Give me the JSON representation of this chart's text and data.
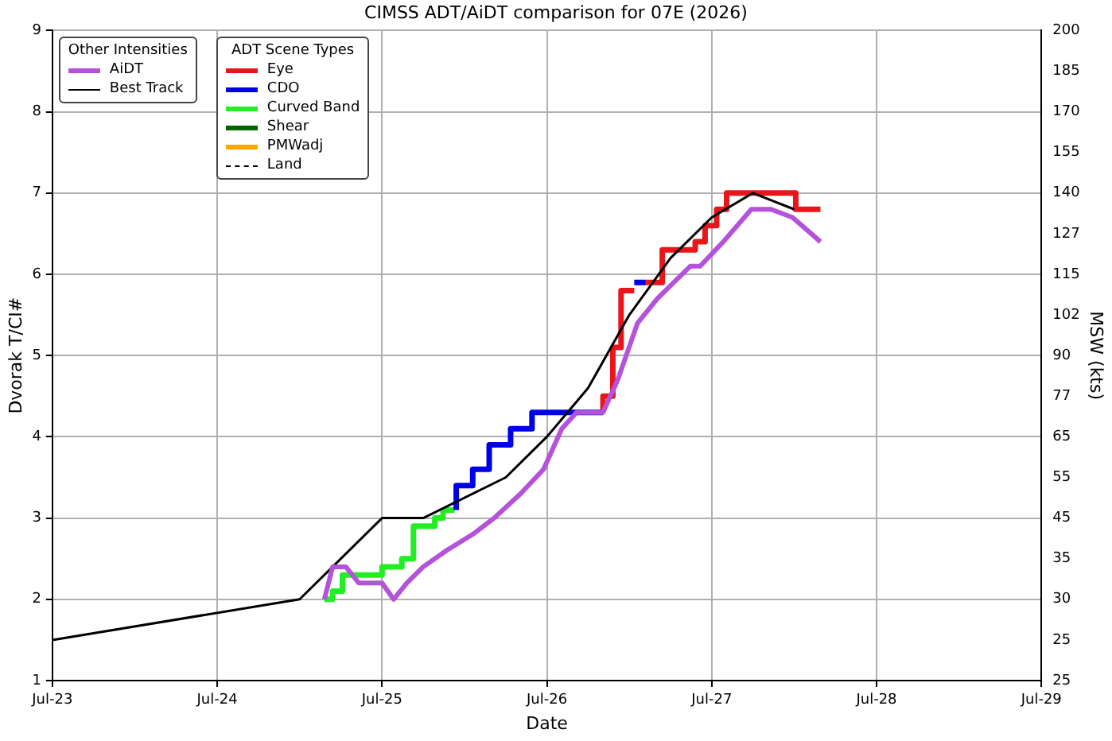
{
  "chart_data": {
    "type": "line",
    "title": "CIMSS ADT/AiDT comparison for 07E (2026)",
    "xlabel": "Date",
    "ylabel": "Dvorak T/CI#",
    "y2label": "MSW (kts)",
    "legend": "top left",
    "legend_title": [
      "Other Intensities",
      "ADT Scene Types"
    ],
    "grid": true,
    "xlim": [
      "2026-07-23",
      "2026-07-29"
    ],
    "xticks": [
      {
        "value": "2026-07-23",
        "label": "Jul-23"
      },
      {
        "value": "2026-07-24",
        "label": "Jul-24"
      },
      {
        "value": "2026-07-25",
        "label": "Jul-25"
      },
      {
        "value": "2026-07-26",
        "label": "Jul-26"
      },
      {
        "value": "2026-07-27",
        "label": "Jul-27"
      },
      {
        "value": "2026-07-28",
        "label": "Jul-28"
      },
      {
        "value": "2026-07-29",
        "label": "Jul-29"
      }
    ],
    "ylim": [
      1,
      9
    ],
    "yticks": [
      1,
      2,
      3,
      4,
      5,
      6,
      7,
      8,
      9
    ],
    "y2_categories": [
      "200",
      "185",
      "170",
      "155",
      "140",
      "127",
      "115",
      "102",
      "90",
      "77",
      "65",
      "55",
      "45",
      "35",
      "30",
      "25",
      "25"
    ],
    "series": [
      {
        "name": "AiDT",
        "color": "#b452dc",
        "x": [
          "2026-07-24T15:36",
          "2026-07-24T16:48",
          "2026-07-24T18:43",
          "2026-07-24T20:38",
          "2026-07-24T22:19",
          "2026-07-25T00:00",
          "2026-07-25T01:41",
          "2026-07-25T03:36",
          "2026-07-25T06:00",
          "2026-07-25T09:22",
          "2026-07-25T13:12",
          "2026-07-25T16:19",
          "2026-07-25T20:10",
          "2026-07-25T23:31",
          "2026-07-26T02:10",
          "2026-07-26T04:19",
          "2026-07-26T08:10",
          "2026-07-26T10:19",
          "2026-07-26T13:12",
          "2026-07-26T16:05",
          "2026-07-26T18:29",
          "2026-07-26T20:53",
          "2026-07-26T22:19",
          "2026-07-27T01:41",
          "2026-07-27T05:46",
          "2026-07-27T08:38",
          "2026-07-27T11:46",
          "2026-07-27T15:50"
        ],
        "values": [
          2.0,
          2.4,
          2.4,
          2.2,
          2.2,
          2.2,
          2.0,
          2.2,
          2.4,
          2.6,
          2.8,
          3.0,
          3.3,
          3.6,
          4.1,
          4.3,
          4.3,
          4.7,
          5.4,
          5.7,
          5.9,
          6.1,
          6.1,
          6.4,
          6.8,
          6.8,
          6.7,
          6.4
        ]
      },
      {
        "name": "Best Track",
        "color": "#000000",
        "x": [
          "2026-07-23T00:00",
          "2026-07-24T12:00",
          "2026-07-25T00:00",
          "2026-07-25T06:00",
          "2026-07-25T18:00",
          "2026-07-26T00:00",
          "2026-07-26T06:00",
          "2026-07-26T12:00",
          "2026-07-26T18:00",
          "2026-07-27T00:00",
          "2026-07-27T06:00",
          "2026-07-27T12:00"
        ],
        "values": [
          1.5,
          2.0,
          3.0,
          3.0,
          3.5,
          4.0,
          4.6,
          5.5,
          6.2,
          6.7,
          7.0,
          6.8
        ]
      },
      {
        "name": "Eye",
        "type": "step",
        "color": "#e8161b",
        "x": [
          "2026-07-26T08:10",
          "2026-07-26T09:36",
          "2026-07-26T10:48",
          "2026-07-26T12:00",
          "2026-07-26T12:43",
          "2026-07-26T13:26",
          "2026-07-26T14:24",
          "2026-07-26T16:48",
          "2026-07-26T18:00",
          "2026-07-26T21:36",
          "2026-07-26T23:02",
          "2026-07-27T00:43",
          "2026-07-27T02:10",
          "2026-07-27T03:50",
          "2026-07-27T12:14",
          "2026-07-27T13:41",
          "2026-07-27T15:50"
        ],
        "values": [
          4.3,
          4.5,
          5.1,
          5.8,
          5.8,
          null,
          5.9,
          5.9,
          6.3,
          6.3,
          6.4,
          6.6,
          6.8,
          7.0,
          7.0,
          6.8,
          6.8
        ]
      },
      {
        "name": "CDO",
        "type": "step",
        "color": "#0000e6",
        "x": [
          "2026-07-25T10:48",
          "2026-07-25T13:12",
          "2026-07-25T15:36",
          "2026-07-25T18:43",
          "2026-07-25T21:50",
          "2026-07-26T00:14",
          "2026-07-26T08:10",
          "2026-07-26T10:48",
          "2026-07-26T12:43",
          "2026-07-26T14:24"
        ],
        "values": [
          3.1,
          3.4,
          3.6,
          3.9,
          4.1,
          4.3,
          4.3,
          null,
          5.9,
          5.9
        ]
      },
      {
        "name": "Curved Band",
        "type": "step",
        "color": "#22ee22",
        "x": [
          "2026-07-24T15:36",
          "2026-07-24T16:48",
          "2026-07-24T18:14",
          "2026-07-24T19:55",
          "2026-07-25T00:00",
          "2026-07-25T00:29",
          "2026-07-25T02:53",
          "2026-07-25T04:34",
          "2026-07-25T06:00",
          "2026-07-25T07:41",
          "2026-07-25T08:53",
          "2026-07-25T10:34"
        ],
        "values": [
          2.0,
          2.0,
          2.1,
          2.3,
          2.3,
          2.4,
          2.4,
          2.5,
          2.9,
          2.9,
          3.0,
          3.1
        ]
      },
      {
        "name": "Shear",
        "type": "step",
        "color": "#006400"
      },
      {
        "name": "PMWadj",
        "type": "step",
        "color": "#ffa500"
      },
      {
        "name": "Land",
        "type": "step",
        "color": "#000000",
        "line_style": "dashed"
      }
    ]
  }
}
